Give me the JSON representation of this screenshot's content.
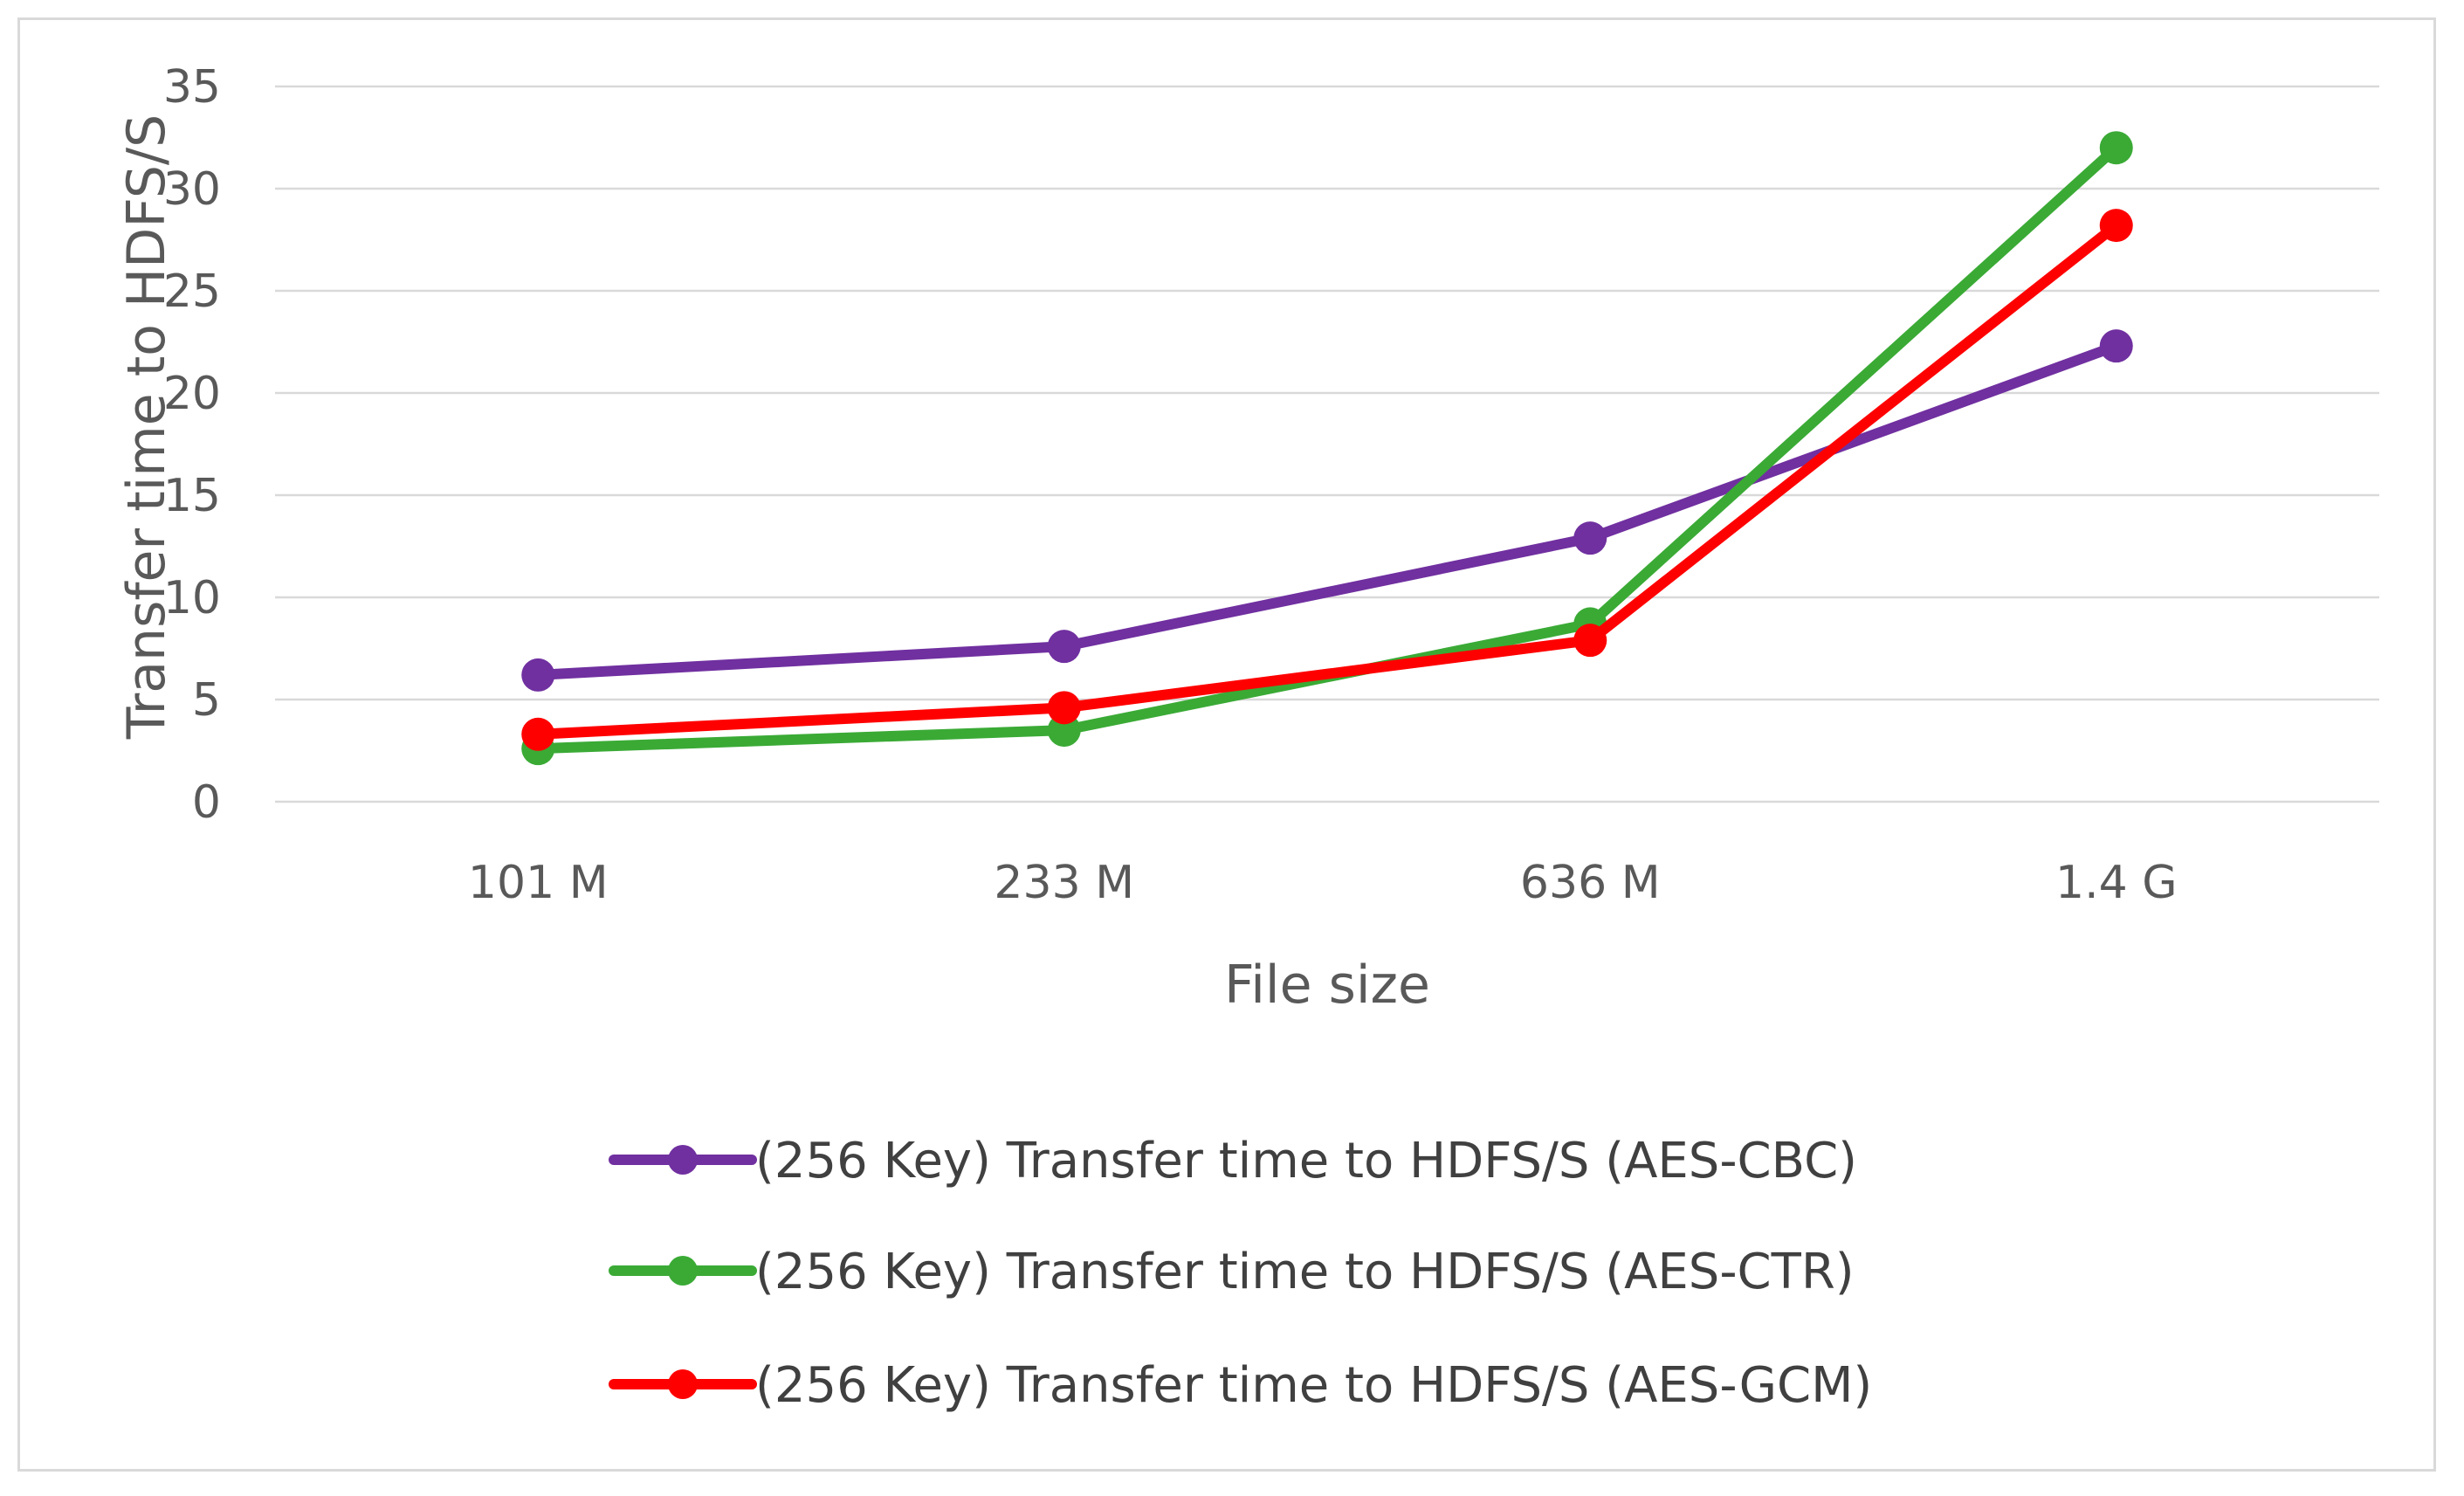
{
  "chart_data": {
    "type": "line",
    "title": "",
    "xlabel": "File size",
    "ylabel": "Transfer time to HDFS/S",
    "categories": [
      "101 M",
      "233 M",
      "636 M",
      "1.4 G"
    ],
    "ylim": [
      0,
      35
    ],
    "yticks": [
      0,
      5,
      10,
      15,
      20,
      25,
      30,
      35
    ],
    "grid": true,
    "legend_position": "bottom",
    "series": [
      {
        "name": "(256 Key) Transfer time to HDFS/S (AES-CBC)",
        "color": "#7030a0",
        "values": [
          6.2,
          7.6,
          12.9,
          22.3
        ]
      },
      {
        "name": "(256 Key) Transfer time to HDFS/S (AES-CTR)",
        "color": "#3aaa35",
        "values": [
          2.6,
          3.5,
          8.7,
          32.0
        ]
      },
      {
        "name": "(256 Key) Transfer time to HDFS/S (AES-GCM)",
        "color": "#ff0000",
        "values": [
          3.3,
          4.6,
          7.9,
          28.2
        ]
      }
    ]
  }
}
